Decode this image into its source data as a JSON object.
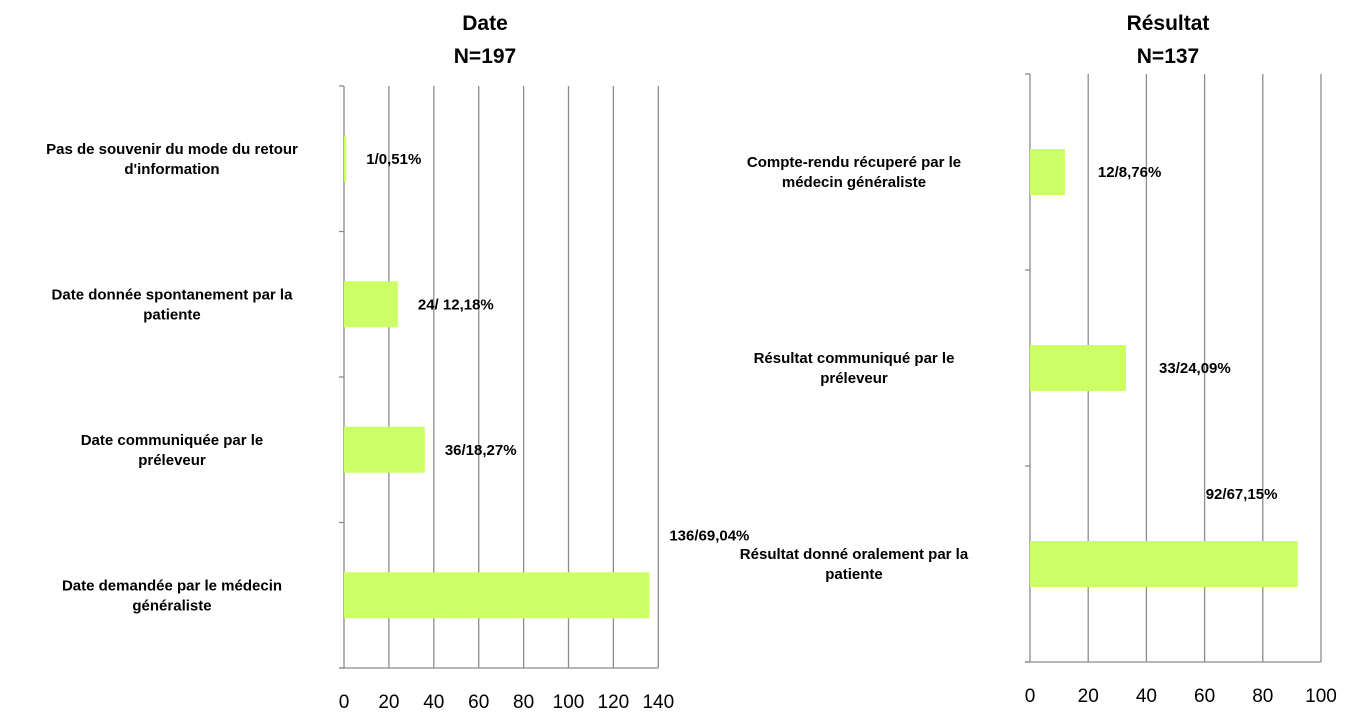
{
  "chart_data": [
    {
      "type": "bar",
      "orientation": "horizontal",
      "title": "Date",
      "subtitle": "N=197",
      "categories": [
        "Pas de souvenir du mode du retour d'information",
        "Date donnée spontanement par la patiente",
        "Date communiquée par le préleveur",
        "Date demandée par le médecin généraliste"
      ],
      "category_lines": [
        [
          "Pas de souvenir du mode du retour",
          "d'information"
        ],
        [
          "Date donnée spontanement par la",
          "patiente"
        ],
        [
          "Date communiquée par le",
          "préleveur"
        ],
        [
          "Date demandée par le médecin",
          "généraliste"
        ]
      ],
      "values": [
        1,
        24,
        36,
        136
      ],
      "data_labels": [
        "1/0,51%",
        "24/ 12,18%",
        "36/18,27%",
        "136/69,04%"
      ],
      "xlim": [
        0,
        140
      ],
      "x_ticks": [
        "0",
        "20",
        "40",
        "60",
        "80",
        "100",
        "120",
        "140"
      ],
      "grid": true,
      "bar_color": "#ccff66"
    },
    {
      "type": "bar",
      "orientation": "horizontal",
      "title": "Résultat",
      "subtitle": "N=137",
      "categories": [
        "Compte-rendu récuperé par le médecin généraliste",
        "Résultat communiqué par le préleveur",
        "Résultat donné oralement par la patiente"
      ],
      "category_lines": [
        [
          "Compte-rendu récuperé par le",
          "médecin généraliste"
        ],
        [
          "Résultat communiqué par le",
          "préleveur"
        ],
        [
          "Résultat donné oralement par la",
          "patiente"
        ]
      ],
      "values": [
        12,
        33,
        92
      ],
      "data_labels": [
        "12/8,76%",
        "33/24,09%",
        "92/67,15%"
      ],
      "xlim": [
        0,
        100
      ],
      "x_ticks": [
        "0",
        "20",
        "40",
        "60",
        "80",
        "100"
      ],
      "grid": true,
      "bar_color": "#ccff66"
    }
  ]
}
